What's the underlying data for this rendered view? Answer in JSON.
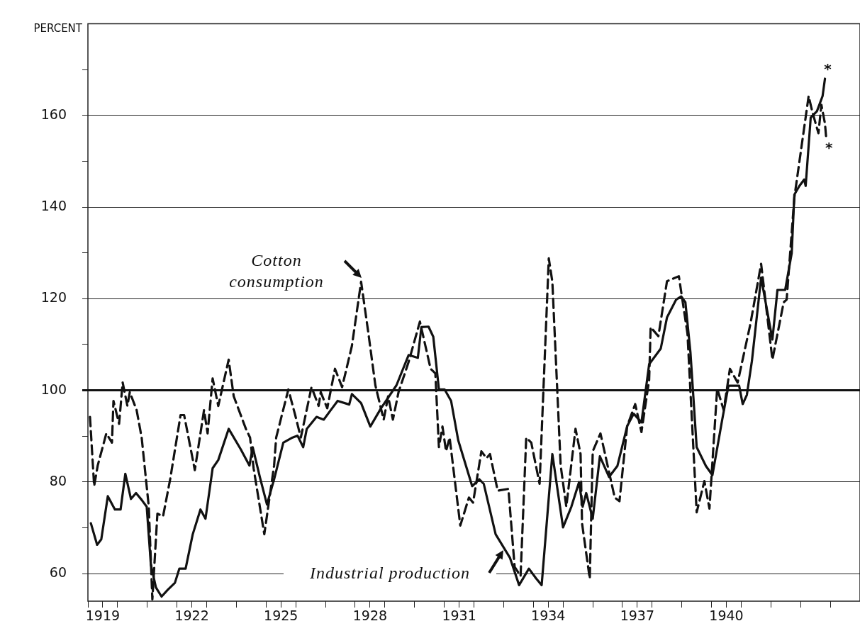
{
  "chart_data": {
    "type": "line",
    "ylabel": "PERCENT",
    "xlim": [
      1919,
      1945
    ],
    "ylim": [
      54,
      180
    ],
    "xticks": [
      {
        "value": 1919,
        "label": null
      },
      {
        "value": 1919.5,
        "label": "1919"
      },
      {
        "value": 1920,
        "label": null
      },
      {
        "value": 1921,
        "label": null
      },
      {
        "value": 1922,
        "label": null
      },
      {
        "value": 1922.5,
        "label": "1922"
      },
      {
        "value": 1923,
        "label": null
      },
      {
        "value": 1924,
        "label": null
      },
      {
        "value": 1925,
        "label": null
      },
      {
        "value": 1925.5,
        "label": "1925"
      },
      {
        "value": 1926,
        "label": null
      },
      {
        "value": 1927,
        "label": null
      },
      {
        "value": 1928,
        "label": null
      },
      {
        "value": 1928.5,
        "label": "1928"
      },
      {
        "value": 1929,
        "label": null
      },
      {
        "value": 1930,
        "label": null
      },
      {
        "value": 1931,
        "label": null
      },
      {
        "value": 1931.5,
        "label": "1931"
      },
      {
        "value": 1932,
        "label": null
      },
      {
        "value": 1933,
        "label": null
      },
      {
        "value": 1934,
        "label": null
      },
      {
        "value": 1934.5,
        "label": "1934"
      },
      {
        "value": 1935,
        "label": null
      },
      {
        "value": 1936,
        "label": null
      },
      {
        "value": 1937,
        "label": null
      },
      {
        "value": 1937.5,
        "label": "1937"
      },
      {
        "value": 1938,
        "label": null
      },
      {
        "value": 1939,
        "label": null
      },
      {
        "value": 1940,
        "label": null
      },
      {
        "value": 1940.5,
        "label": "1940"
      },
      {
        "value": 1941,
        "label": null
      },
      {
        "value": 1942,
        "label": null
      },
      {
        "value": 1943,
        "label": null
      },
      {
        "value": 1944,
        "label": null
      }
    ],
    "yticks": [
      60,
      {
        "value": 70,
        "label": null
      },
      80,
      {
        "value": 90,
        "label": null
      },
      100,
      {
        "value": 110,
        "label": null
      },
      120,
      {
        "value": 130,
        "label": null
      },
      140,
      {
        "value": 150,
        "label": null
      },
      160,
      {
        "value": 170,
        "label": null
      }
    ],
    "grid": "y",
    "legend": "left",
    "ref_lines": [
      {
        "axis": "y",
        "value": 100,
        "color": "#111111"
      }
    ],
    "annotations": [
      {
        "text": "*",
        "x": 1943.82,
        "y": 168
      },
      {
        "text": "*",
        "x": 1943.86,
        "y": 155.2
      }
    ],
    "series": [
      {
        "name": "Cotton consumption",
        "color": "#111111",
        "line_style": "dashed",
        "x": [
          1919.07,
          1919.21,
          1919.33,
          1919.62,
          1919.81,
          1919.86,
          1920.05,
          1920.17,
          1920.33,
          1920.41,
          1920.64,
          1920.81,
          1921.05,
          1921.17,
          1921.34,
          1921.53,
          1921.77,
          1922.12,
          1922.24,
          1922.6,
          1922.91,
          1923.03,
          1923.2,
          1923.39,
          1923.74,
          1923.91,
          1924.32,
          1924.46,
          1924.58,
          1924.94,
          1925.27,
          1925.34,
          1925.75,
          1925.98,
          1926.17,
          1926.53,
          1926.77,
          1926.84,
          1927.06,
          1927.32,
          1927.56,
          1927.89,
          1928.2,
          1928.44,
          1928.68,
          1928.96,
          1929.11,
          1929.27,
          1929.46,
          1929.8,
          1930.18,
          1930.54,
          1930.7,
          1930.82,
          1930.94,
          1931.06,
          1931.18,
          1931.54,
          1931.83,
          1931.97,
          1932.25,
          1932.42,
          1932.54,
          1932.8,
          1933.16,
          1933.37,
          1933.57,
          1933.76,
          1933.93,
          1934.21,
          1934.52,
          1934.64,
          1934.92,
          1935.11,
          1935.42,
          1935.59,
          1935.64,
          1935.9,
          1936,
          1936.26,
          1936.74,
          1936.9,
          1937.16,
          1937.43,
          1937.64,
          1937.9,
          1937.95,
          1938.21,
          1938.5,
          1938.9,
          1939.19,
          1939.5,
          1939.76,
          1939.93,
          1940.19,
          1940.41,
          1940.62,
          1940.88,
          1941.31,
          1941.67,
          1942.05,
          1942.43,
          1942.53,
          1942.79,
          1943.27,
          1943.39,
          1943.6,
          1943.7,
          1943.82,
          1943.86
        ],
        "values": [
          94.2,
          79.1,
          83.6,
          90.6,
          88.6,
          97.7,
          92.7,
          101.7,
          96.6,
          99.6,
          95.7,
          89.7,
          74.6,
          54.4,
          73.1,
          72.5,
          80.6,
          94.6,
          94.6,
          82.6,
          95.7,
          90.6,
          102.6,
          96.6,
          106.7,
          98.7,
          91.6,
          89.7,
          83,
          68.6,
          83.6,
          89.7,
          100.2,
          94.6,
          89.7,
          100.7,
          96.6,
          99.6,
          96.1,
          104.7,
          100.7,
          109.7,
          123.7,
          112.7,
          101.1,
          93.6,
          98.7,
          93.6,
          99.6,
          106.2,
          115,
          104.7,
          103.7,
          87.6,
          92.1,
          86.7,
          89.7,
          70.5,
          76.6,
          75.5,
          86.7,
          85.2,
          86.1,
          78.1,
          78.5,
          61.5,
          59.5,
          89.7,
          88.6,
          79.6,
          128.8,
          123.7,
          83.6,
          74.6,
          91.6,
          86.1,
          71,
          58.9,
          86.7,
          90.6,
          76.6,
          75.8,
          92.2,
          97,
          90.9,
          102.3,
          113.8,
          111.8,
          123.8,
          124.9,
          112.4,
          73.4,
          80.2,
          74.2,
          100.4,
          95.7,
          104.7,
          101.7,
          114.5,
          127.6,
          106.7,
          119.2,
          119.8,
          142.1,
          164.2,
          160.9,
          156.1,
          162.3,
          158.2,
          155.2
        ]
      },
      {
        "name": "Industrial production",
        "color": "#111111",
        "line_style": "solid",
        "x": [
          1919.1,
          1919.31,
          1919.45,
          1919.67,
          1919.91,
          1920.1,
          1920.26,
          1920.45,
          1920.62,
          1920.81,
          1920.98,
          1921.12,
          1921.29,
          1921.48,
          1921.69,
          1921.93,
          1922.08,
          1922.29,
          1922.53,
          1922.79,
          1922.96,
          1923.2,
          1923.39,
          1923.74,
          1924.15,
          1924.44,
          1924.55,
          1924.79,
          1925.03,
          1925.27,
          1925.58,
          1925.89,
          1926.06,
          1926.25,
          1926.37,
          1926.7,
          1926.94,
          1927.18,
          1927.41,
          1927.8,
          1927.89,
          1928.2,
          1928.51,
          1928.87,
          1929.39,
          1929.8,
          1930.11,
          1930.23,
          1930.47,
          1930.63,
          1930.82,
          1931.01,
          1931.23,
          1931.47,
          1931.94,
          1932.18,
          1932.33,
          1932.73,
          1933.21,
          1933.52,
          1933.85,
          1934.09,
          1934.28,
          1934.64,
          1935,
          1935.28,
          1935.54,
          1935.66,
          1935.78,
          1936,
          1936.24,
          1936.55,
          1936.83,
          1937.16,
          1937.38,
          1937.64,
          1937.9,
          1938.29,
          1938.5,
          1938.81,
          1938.98,
          1939.12,
          1939.29,
          1939.5,
          1939.81,
          1940.03,
          1940.36,
          1940.57,
          1940.93,
          1941.05,
          1941.19,
          1941.36,
          1941.67,
          1942.05,
          1942.22,
          1942.48,
          1942.7,
          1942.79,
          1942.96,
          1943.12,
          1943.17,
          1943.34,
          1943.55,
          1943.74,
          1943.82
        ],
        "values": [
          71,
          66.3,
          67.5,
          76.9,
          74,
          74,
          81.8,
          76.3,
          77.6,
          76.1,
          74.6,
          62,
          57,
          55,
          56.5,
          58,
          61.1,
          61.1,
          68.6,
          74,
          72,
          83,
          84.8,
          91.6,
          87.1,
          83.6,
          87.6,
          81.1,
          75.1,
          80.6,
          88.6,
          89.7,
          90.1,
          87.6,
          91.6,
          94.2,
          93.6,
          95.7,
          97.7,
          96.9,
          99.2,
          97.2,
          92.1,
          96.1,
          101.1,
          107.7,
          107.1,
          113.8,
          113.9,
          111.7,
          100.2,
          100.2,
          97.7,
          89.1,
          79.1,
          80.6,
          79.6,
          68.6,
          63.5,
          57.5,
          61.1,
          59,
          57.5,
          86.1,
          70.1,
          74.6,
          80,
          74.6,
          77.6,
          72,
          85.6,
          81.1,
          83.5,
          92.2,
          94.9,
          93,
          105.7,
          109.1,
          115.9,
          119.8,
          120.5,
          119.2,
          108.3,
          87.6,
          83.5,
          81.5,
          93.6,
          101,
          101,
          97,
          99,
          106.4,
          124.6,
          111.1,
          121.9,
          121.9,
          129.9,
          142.7,
          144.6,
          146,
          144.6,
          159.5,
          160.9,
          164.2,
          168
        ]
      }
    ]
  }
}
